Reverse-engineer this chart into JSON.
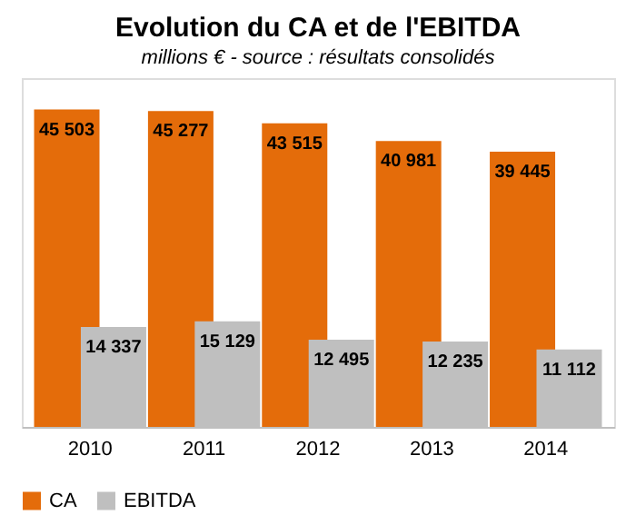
{
  "chart_data": {
    "type": "bar",
    "title": "Evolution du CA et de l'EBITDA",
    "subtitle": "millions € - source : résultats consolidés",
    "categories": [
      "2010",
      "2011",
      "2012",
      "2013",
      "2014"
    ],
    "series": [
      {
        "name": "CA",
        "color": "#e46c0a",
        "values": [
          45503,
          45277,
          43515,
          40981,
          39445
        ],
        "value_labels": [
          "45 503",
          "45 277",
          "43 515",
          "40 981",
          "39 445"
        ]
      },
      {
        "name": "EBITDA",
        "color": "#bfbfbf",
        "values": [
          14337,
          15129,
          12495,
          12235,
          11112
        ],
        "value_labels": [
          "14 337",
          "15 129",
          "12 495",
          "12 235",
          "11 112"
        ]
      }
    ],
    "tick_labels": "x",
    "grid": false,
    "legend": "bottom"
  }
}
